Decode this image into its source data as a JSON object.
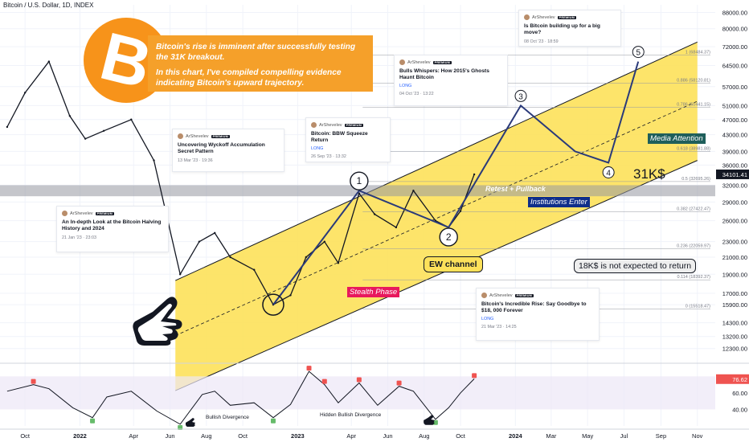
{
  "header": "Bitcoin / U.S. Dollar, 1D, INDEX",
  "hero": {
    "line1": "Bitcoin's rise is imminent after successfully testing the 31K breakout.",
    "line2": "In this chart, I've compiled compelling evidence indicating Bitcoin's upward trajectory."
  },
  "cards": [
    {
      "author": "ArShevelev",
      "badge": "PREMIUM",
      "title": "An In-depth Look at the Bitcoin Halving History and 2024",
      "tag": "",
      "date": "21 Jan '23 · 23:03"
    },
    {
      "author": "ArShevelev",
      "badge": "PREMIUM",
      "title": "Uncovering Wyckoff Accumulation Secret Pattern",
      "tag": "",
      "date": "13 Mar '23 · 19:36"
    },
    {
      "author": "ArShevelev",
      "badge": "PREMIUM",
      "title": "Bitcoin: BBW Squeeze Return",
      "tag": "LONG",
      "date": "26 Sep '23 · 13:32"
    },
    {
      "author": "ArShevelev",
      "badge": "PREMIUM",
      "title": "Bulls Whispers: How 2015's Ghosts Haunt Bitcoin",
      "tag": "LONG",
      "date": "04 Oct '23 · 13:22"
    },
    {
      "author": "ArShevelev",
      "badge": "PREMIUM",
      "title": "Is Bitcoin building up for a big move?",
      "tag": "",
      "date": "08 Oct '23 · 18:59"
    },
    {
      "author": "ArShevelev",
      "badge": "PREMIUM",
      "title": "Bitcoin's Incredible Rise: Say Goodbye to $18, 000 Forever",
      "tag": "LONG",
      "date": "21 Mar '23 · 14:25"
    }
  ],
  "labels": {
    "stealth": "Stealth Phase",
    "media": "Media Attention",
    "institutions": "Institutions Enter",
    "retest": "Retest + Pullback",
    "ew_channel": "EW channel",
    "k31": "31K$",
    "k18": "18K$ is not expected to return",
    "bullish_div": "Bullish Divergence",
    "hidden_div": "Hidden Bullish Divergence"
  },
  "colors": {
    "channel": "#fde15a",
    "brand_orange": "#f7931a",
    "candles": "#131722",
    "wave_path": "#2a3a7a",
    "rsi_line": "#131722",
    "rsi_band": "#ede7f6",
    "bearish_marker": "#ef5350",
    "bullish_marker": "#66bb6a"
  },
  "chart_data": {
    "type": "line",
    "price_axis": {
      "scale": "log",
      "ticks": [
        "88000.00",
        "80000.00",
        "72000.00",
        "64500.00",
        "57000.00",
        "51000.00",
        "47000.00",
        "43000.00",
        "39000.00",
        "36000.00",
        "32000.00",
        "29000.00",
        "26000.00",
        "23000.00",
        "21000.00",
        "19000.00",
        "17000.00",
        "15900.00",
        "14300.00",
        "13200.00",
        "12300.00"
      ],
      "tick_values": [
        88000,
        80000,
        72000,
        64500,
        57000,
        51000,
        47000,
        43000,
        39000,
        36000,
        32000,
        29000,
        26000,
        23000,
        21000,
        19000,
        17000,
        15900,
        14300,
        13200,
        12300
      ],
      "ylim": [
        11500,
        92000
      ],
      "current_price": "34101.41"
    },
    "time_axis": {
      "labels": [
        "Oct",
        "2022",
        "Apr",
        "Jun",
        "Aug",
        "Oct",
        "2023",
        "Apr",
        "Jun",
        "Aug",
        "Oct",
        "2024",
        "Mar",
        "May",
        "Jul",
        "Sep",
        "Nov"
      ],
      "dates": [
        "2021-10-01",
        "2022-01-01",
        "2022-04-01",
        "2022-06-01",
        "2022-08-01",
        "2022-10-01",
        "2023-01-01",
        "2023-04-01",
        "2023-06-01",
        "2023-08-01",
        "2023-10-01",
        "2024-01-01",
        "2024-03-01",
        "2024-05-01",
        "2024-07-01",
        "2024-09-01",
        "2024-11-01"
      ]
    },
    "fib_levels": [
      {
        "label": "1 (68484.37)",
        "value": 68484.37
      },
      {
        "label": "0.886 (58120.81)",
        "value": 58120.81
      },
      {
        "label": "0.786 (50441.15)",
        "value": 50441.15
      },
      {
        "label": "0.618 (38981.88)",
        "value": 38981.88
      },
      {
        "label": "0.5 (32695.26)",
        "value": 32695.26
      },
      {
        "label": "0.382 (27422.47)",
        "value": 27422.47
      },
      {
        "label": "0.236 (22059.97)",
        "value": 22059.97
      },
      {
        "label": "0.114 (18392.37)",
        "value": 18392.37
      },
      {
        "label": "0 (15518.47)",
        "value": 15518.47
      }
    ],
    "series": [
      {
        "name": "",
        "x": [
          "2021-09-01",
          "2021-10-01",
          "2021-11-10",
          "2021-12-15",
          "2022-01-10",
          "2022-02-10",
          "2022-03-28",
          "2022-05-05",
          "2022-06-18",
          "2022-07-20",
          "2022-08-15",
          "2022-09-10",
          "2022-10-20",
          "2022-11-21",
          "2022-12-20",
          "2023-01-15",
          "2023-02-15",
          "2023-03-10",
          "2023-04-14",
          "2023-05-10",
          "2023-06-15",
          "2023-07-14",
          "2023-08-20",
          "2023-09-11",
          "2023-10-01",
          "2023-10-24"
        ],
        "y": [
          45000,
          55000,
          66000,
          48000,
          42000,
          44000,
          47000,
          37000,
          19000,
          23000,
          24200,
          21000,
          19500,
          15900,
          16800,
          21000,
          23000,
          20300,
          30500,
          27000,
          25000,
          31000,
          26000,
          25000,
          27500,
          34100
        ]
      },
      {
        "name": "",
        "x": [
          "2022-11-21",
          "2023-04-14",
          "2023-09-11",
          "2024-01-10",
          "2024-04-10",
          "2024-06-05",
          "2024-07-25"
        ],
        "y": [
          15900,
          31000,
          25000,
          51000,
          39000,
          36500,
          66000
        ],
        "points": [
          "",
          "1",
          "2",
          "3",
          "",
          "4",
          "5"
        ]
      }
    ],
    "rsi": {
      "ticks": [
        "80.00",
        "60.00",
        "40.00"
      ],
      "current": "76.62",
      "range": [
        20,
        90
      ],
      "x": [
        "2021-09-01",
        "2021-10-15",
        "2021-11-10",
        "2021-12-20",
        "2022-01-22",
        "2022-02-15",
        "2022-03-28",
        "2022-05-10",
        "2022-06-18",
        "2022-07-25",
        "2022-08-15",
        "2022-09-10",
        "2022-10-20",
        "2022-11-21",
        "2022-12-20",
        "2023-01-20",
        "2023-02-15",
        "2023-03-10",
        "2023-04-14",
        "2023-05-15",
        "2023-06-20",
        "2023-07-14",
        "2023-08-20",
        "2023-09-11",
        "2023-10-01",
        "2023-10-24"
      ],
      "y": [
        62,
        70,
        65,
        42,
        30,
        55,
        62,
        38,
        22,
        58,
        62,
        45,
        48,
        30,
        46,
        86,
        70,
        48,
        72,
        45,
        68,
        62,
        28,
        42,
        60,
        77
      ]
    },
    "channel": {
      "upper": [
        [
          "2021-12-10",
          13700
        ],
        [
          "2024-11-01",
          74000
        ]
      ],
      "lower": [
        [
          "2022-11-01",
          12000
        ],
        [
          "2024-11-01",
          37000
        ]
      ]
    }
  }
}
